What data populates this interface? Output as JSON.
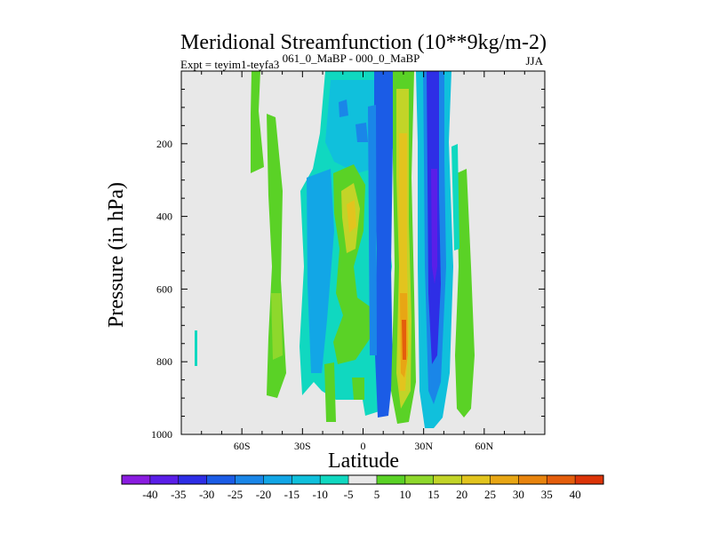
{
  "chart_data": {
    "type": "heatmap",
    "title": "Meridional Streamfunction (10**9kg/m-2)",
    "subtitle_left": "Expt = teyim1-teyfa3",
    "subtitle_center": "061_0_MaBP - 000_0_MaBP",
    "subtitle_right": "JJA",
    "xlabel": "Latitude",
    "ylabel": "Pressure (in hPa)",
    "xlim": [
      -90,
      90
    ],
    "ylim": [
      1000,
      0
    ],
    "x_ticks": [
      {
        "value": -60,
        "label": "60S"
      },
      {
        "value": -30,
        "label": "30S"
      },
      {
        "value": 0,
        "label": "0"
      },
      {
        "value": 30,
        "label": "30N"
      },
      {
        "value": 60,
        "label": "60N"
      }
    ],
    "y_ticks": [
      {
        "value": 200,
        "label": "200"
      },
      {
        "value": 400,
        "label": "400"
      },
      {
        "value": 600,
        "label": "600"
      },
      {
        "value": 800,
        "label": "800"
      },
      {
        "value": 1000,
        "label": "1000"
      }
    ],
    "background_color": "#e8e8e8",
    "colorbar": {
      "labels": [
        "-40",
        "-35",
        "-30",
        "-25",
        "-20",
        "-15",
        "-10",
        "-5",
        "5",
        "10",
        "15",
        "20",
        "25",
        "30",
        "35",
        "40"
      ],
      "colors": [
        "#8a1ce0",
        "#5a1ee8",
        "#2e2ee6",
        "#1b5ce6",
        "#1a86e8",
        "#12a6e6",
        "#10c0dc",
        "#10d8c0",
        "#e8e8e8",
        "#5ad226",
        "#8ed82c",
        "#c2d428",
        "#e2c41e",
        "#e8a614",
        "#e8840e",
        "#e45e0c",
        "#dc3408"
      ]
    },
    "contour_regions": [
      {
        "name": "se-polar-band",
        "level": 5,
        "points": [
          [
            -54,
            1000
          ],
          [
            -54,
            0
          ]
        ]
      },
      {
        "name": "sh-midlat-band",
        "level": 5,
        "points": [
          [
            -46,
            0
          ],
          [
            -39,
            900
          ]
        ]
      },
      {
        "name": "tropical-cyan-cell",
        "level": -5,
        "points": [
          [
            -30,
            970
          ],
          [
            -8,
            0
          ]
        ]
      },
      {
        "name": "sh-positive-cell",
        "level": 20,
        "points": [
          [
            -12,
            880
          ],
          [
            4,
            200
          ]
        ]
      },
      {
        "name": "eq-negative-band",
        "level": -20,
        "points": [
          [
            5,
            950
          ],
          [
            12,
            0
          ]
        ]
      },
      {
        "name": "nh-hadley-positive",
        "level": 35,
        "points": [
          [
            17,
            930
          ],
          [
            24,
            0
          ]
        ]
      },
      {
        "name": "nh-ferrel-negative",
        "level": -40,
        "points": [
          [
            28,
            970
          ],
          [
            38,
            0
          ]
        ]
      },
      {
        "name": "nh-midlat-positive",
        "level": 5,
        "points": [
          [
            47,
            950
          ],
          [
            52,
            280
          ]
        ]
      }
    ]
  }
}
